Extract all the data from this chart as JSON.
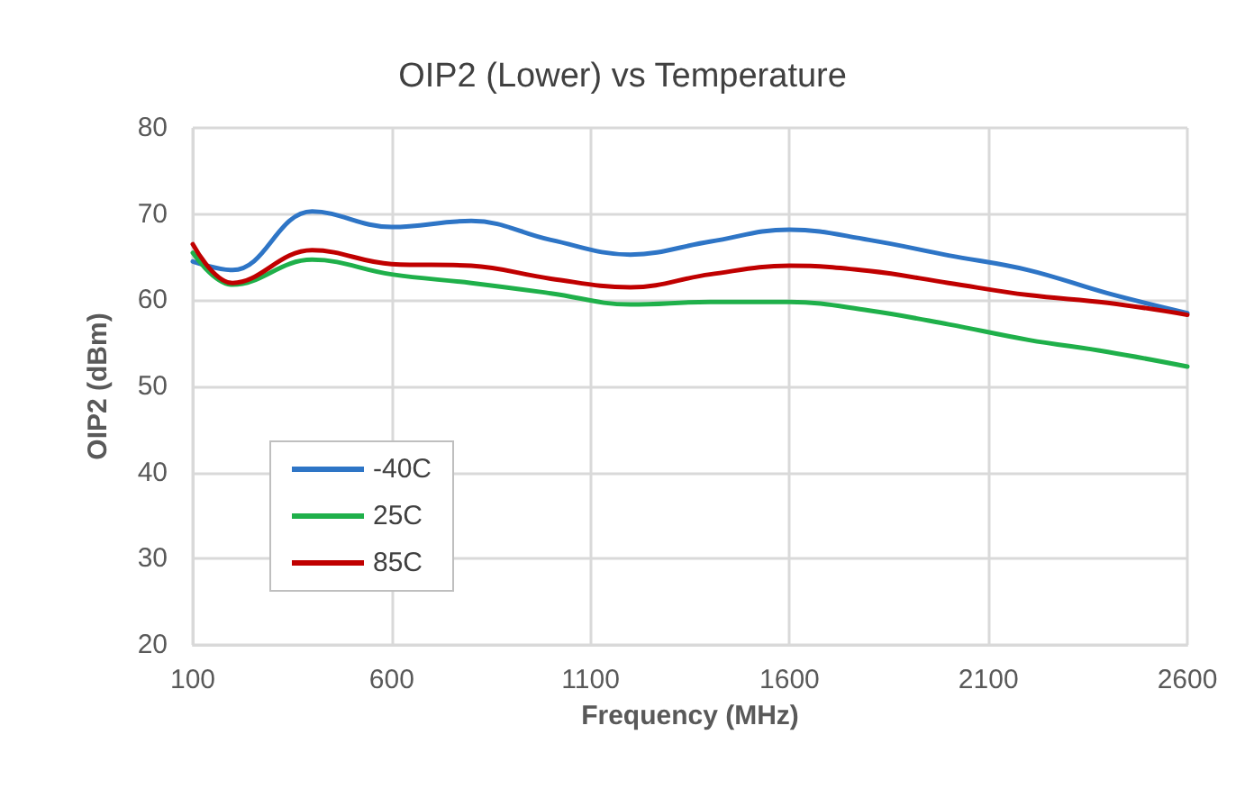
{
  "chart_data": {
    "type": "line",
    "title": "OIP2 (Lower) vs Temperature",
    "xlabel": "Frequency (MHz)",
    "ylabel": "OIP2 (dBm)",
    "x": [
      100,
      200,
      400,
      600,
      800,
      1000,
      1200,
      1400,
      1600,
      1800,
      2000,
      2200,
      2400,
      2600
    ],
    "series": [
      {
        "name": "-40C",
        "color": "#2e75c6",
        "values": [
          64.5,
          63.5,
          70.3,
          68.5,
          69.2,
          67,
          65.3,
          66.8,
          68.2,
          67,
          65.2,
          63.5,
          60.8,
          58.5
        ]
      },
      {
        "name": "25C",
        "color": "#1fb04a",
        "values": [
          65.5,
          61.8,
          64.7,
          63,
          62,
          60.8,
          59.5,
          59.8,
          59.8,
          58.8,
          57.2,
          55.4,
          54,
          52.3
        ]
      },
      {
        "name": "85C",
        "color": "#c00000",
        "values": [
          66.5,
          62,
          65.8,
          64.2,
          64,
          62.5,
          61.5,
          63,
          64,
          63.4,
          62,
          60.6,
          59.7,
          58.3
        ]
      }
    ],
    "xlim": [
      100,
      2600
    ],
    "xticks": [
      100,
      600,
      1100,
      1600,
      2100,
      2600
    ],
    "ylim": [
      20,
      80
    ],
    "yticks": [
      20,
      30,
      40,
      50,
      60,
      70,
      80
    ],
    "grid": true,
    "legend": "bottom left",
    "marker": "none",
    "line_style": "solid"
  }
}
